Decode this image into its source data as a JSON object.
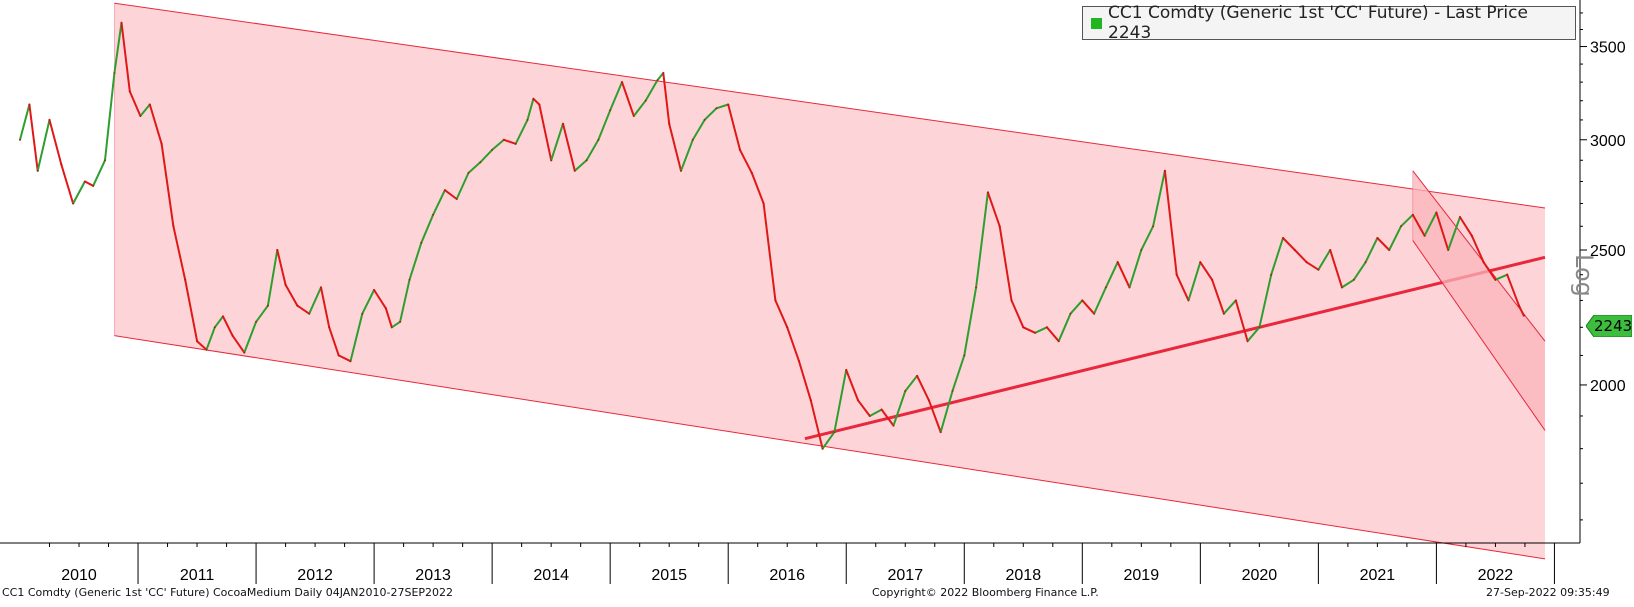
{
  "chart_data": {
    "type": "line",
    "subtype": "daily price chart (log scale) with regression channels",
    "legend": {
      "label": "CC1 Comdty (Generic 1st 'CC' Future) - Last Price 2243",
      "color": "#22b522",
      "placement": "top-right"
    },
    "last_price": {
      "value": 2243,
      "label": "2243",
      "color": "#3dbd3d"
    },
    "scale": "log",
    "axis_label_right": "Log",
    "ylim": [
      1540,
      3780
    ],
    "xlim": [
      2010.0,
      2022.92
    ],
    "y_ticks": [
      {
        "value": 2000,
        "label": "2000"
      },
      {
        "value": 2500,
        "label": "2500"
      },
      {
        "value": 3000,
        "label": "3000"
      },
      {
        "value": 3500,
        "label": "3500"
      }
    ],
    "x_tick_labels": [
      "2010",
      "2011",
      "2012",
      "2013",
      "2014",
      "2015",
      "2016",
      "2017",
      "2018",
      "2019",
      "2020",
      "2021",
      "2022"
    ],
    "grid": false,
    "series": [
      {
        "x": [
          2010.0,
          2010.08,
          2010.15,
          2010.25,
          2010.35,
          2010.45,
          2010.55,
          2010.62,
          2010.72,
          2010.8,
          2010.86,
          2010.93,
          2011.02,
          2011.1,
          2011.2,
          2011.3,
          2011.4,
          2011.5,
          2011.58,
          2011.65,
          2011.72,
          2011.8,
          2011.9,
          2012.0,
          2012.1,
          2012.18,
          2012.25,
          2012.35,
          2012.45,
          2012.55,
          2012.62,
          2012.7,
          2012.8,
          2012.9,
          2013.0,
          2013.1,
          2013.15,
          2013.22,
          2013.3,
          2013.4,
          2013.5,
          2013.6,
          2013.7,
          2013.8,
          2013.9,
          2014.0,
          2014.1,
          2014.2,
          2014.3,
          2014.35,
          2014.4,
          2014.5,
          2014.6,
          2014.7,
          2014.8,
          2014.9,
          2015.0,
          2015.1,
          2015.2,
          2015.3,
          2015.4,
          2015.45,
          2015.5,
          2015.6,
          2015.7,
          2015.8,
          2015.9,
          2016.0,
          2016.1,
          2016.2,
          2016.3,
          2016.4,
          2016.5,
          2016.6,
          2016.7,
          2016.8,
          2016.9,
          2017.0,
          2017.1,
          2017.2,
          2017.3,
          2017.4,
          2017.5,
          2017.6,
          2017.7,
          2017.8,
          2017.9,
          2018.0,
          2018.1,
          2018.2,
          2018.3,
          2018.4,
          2018.5,
          2018.6,
          2018.7,
          2018.8,
          2018.9,
          2019.0,
          2019.1,
          2019.2,
          2019.3,
          2019.4,
          2019.5,
          2019.6,
          2019.7,
          2019.8,
          2019.9,
          2020.0,
          2020.1,
          2020.2,
          2020.3,
          2020.4,
          2020.5,
          2020.6,
          2020.7,
          2020.8,
          2020.9,
          2021.0,
          2021.1,
          2021.2,
          2021.3,
          2021.4,
          2021.5,
          2021.6,
          2021.7,
          2021.8,
          2021.9,
          2022.0,
          2022.1,
          2022.2,
          2022.3,
          2022.4,
          2022.5,
          2022.6,
          2022.7,
          2022.74
        ],
        "y": [
          3000,
          3180,
          2850,
          3100,
          2880,
          2700,
          2800,
          2780,
          2900,
          3350,
          3640,
          3250,
          3120,
          3180,
          2980,
          2600,
          2380,
          2150,
          2120,
          2200,
          2240,
          2170,
          2110,
          2220,
          2280,
          2500,
          2360,
          2280,
          2250,
          2350,
          2200,
          2100,
          2080,
          2250,
          2340,
          2270,
          2200,
          2220,
          2380,
          2530,
          2650,
          2760,
          2720,
          2840,
          2890,
          2950,
          3000,
          2980,
          3100,
          3210,
          3180,
          2900,
          3080,
          2850,
          2900,
          3000,
          3150,
          3300,
          3120,
          3200,
          3310,
          3350,
          3080,
          2850,
          3000,
          3100,
          3160,
          3180,
          2950,
          2840,
          2700,
          2300,
          2200,
          2080,
          1950,
          1800,
          1850,
          2050,
          1950,
          1900,
          1920,
          1870,
          1980,
          2030,
          1950,
          1850,
          1980,
          2100,
          2350,
          2750,
          2600,
          2300,
          2200,
          2180,
          2200,
          2150,
          2250,
          2300,
          2250,
          2350,
          2450,
          2350,
          2500,
          2600,
          2850,
          2400,
          2300,
          2450,
          2380,
          2250,
          2300,
          2150,
          2200,
          2400,
          2550,
          2500,
          2450,
          2420,
          2500,
          2350,
          2380,
          2450,
          2550,
          2500,
          2600,
          2650,
          2560,
          2660,
          2500,
          2640,
          2560,
          2450,
          2380,
          2400,
          2280,
          2243
        ]
      }
    ],
    "annotations": [
      {
        "type": "channel",
        "color": "#e8283c",
        "fill": "#fdd5d8",
        "upper": [
          [
            2010.8,
            3760
          ],
          [
            2022.92,
            2680
          ]
        ],
        "lower": [
          [
            2010.8,
            2170
          ],
          [
            2022.92,
            1500
          ]
        ]
      },
      {
        "type": "trendline",
        "color": "#e8283c",
        "points": [
          [
            2016.65,
            1830
          ],
          [
            2022.92,
            2470
          ]
        ]
      },
      {
        "type": "channel",
        "color": "#e8283c",
        "fill": "#f9b3bb",
        "upper": [
          [
            2021.8,
            2850
          ],
          [
            2022.92,
            2150
          ]
        ],
        "lower": [
          [
            2021.8,
            2540
          ],
          [
            2022.92,
            1855
          ]
        ]
      }
    ]
  },
  "footer": {
    "left": "CC1 Comdty (Generic 1st 'CC' Future) CocoaMedium  Daily 04JAN2010-27SEP2022",
    "center": "Copyright© 2022 Bloomberg Finance L.P.",
    "right": "27-Sep-2022 09:35:49"
  }
}
